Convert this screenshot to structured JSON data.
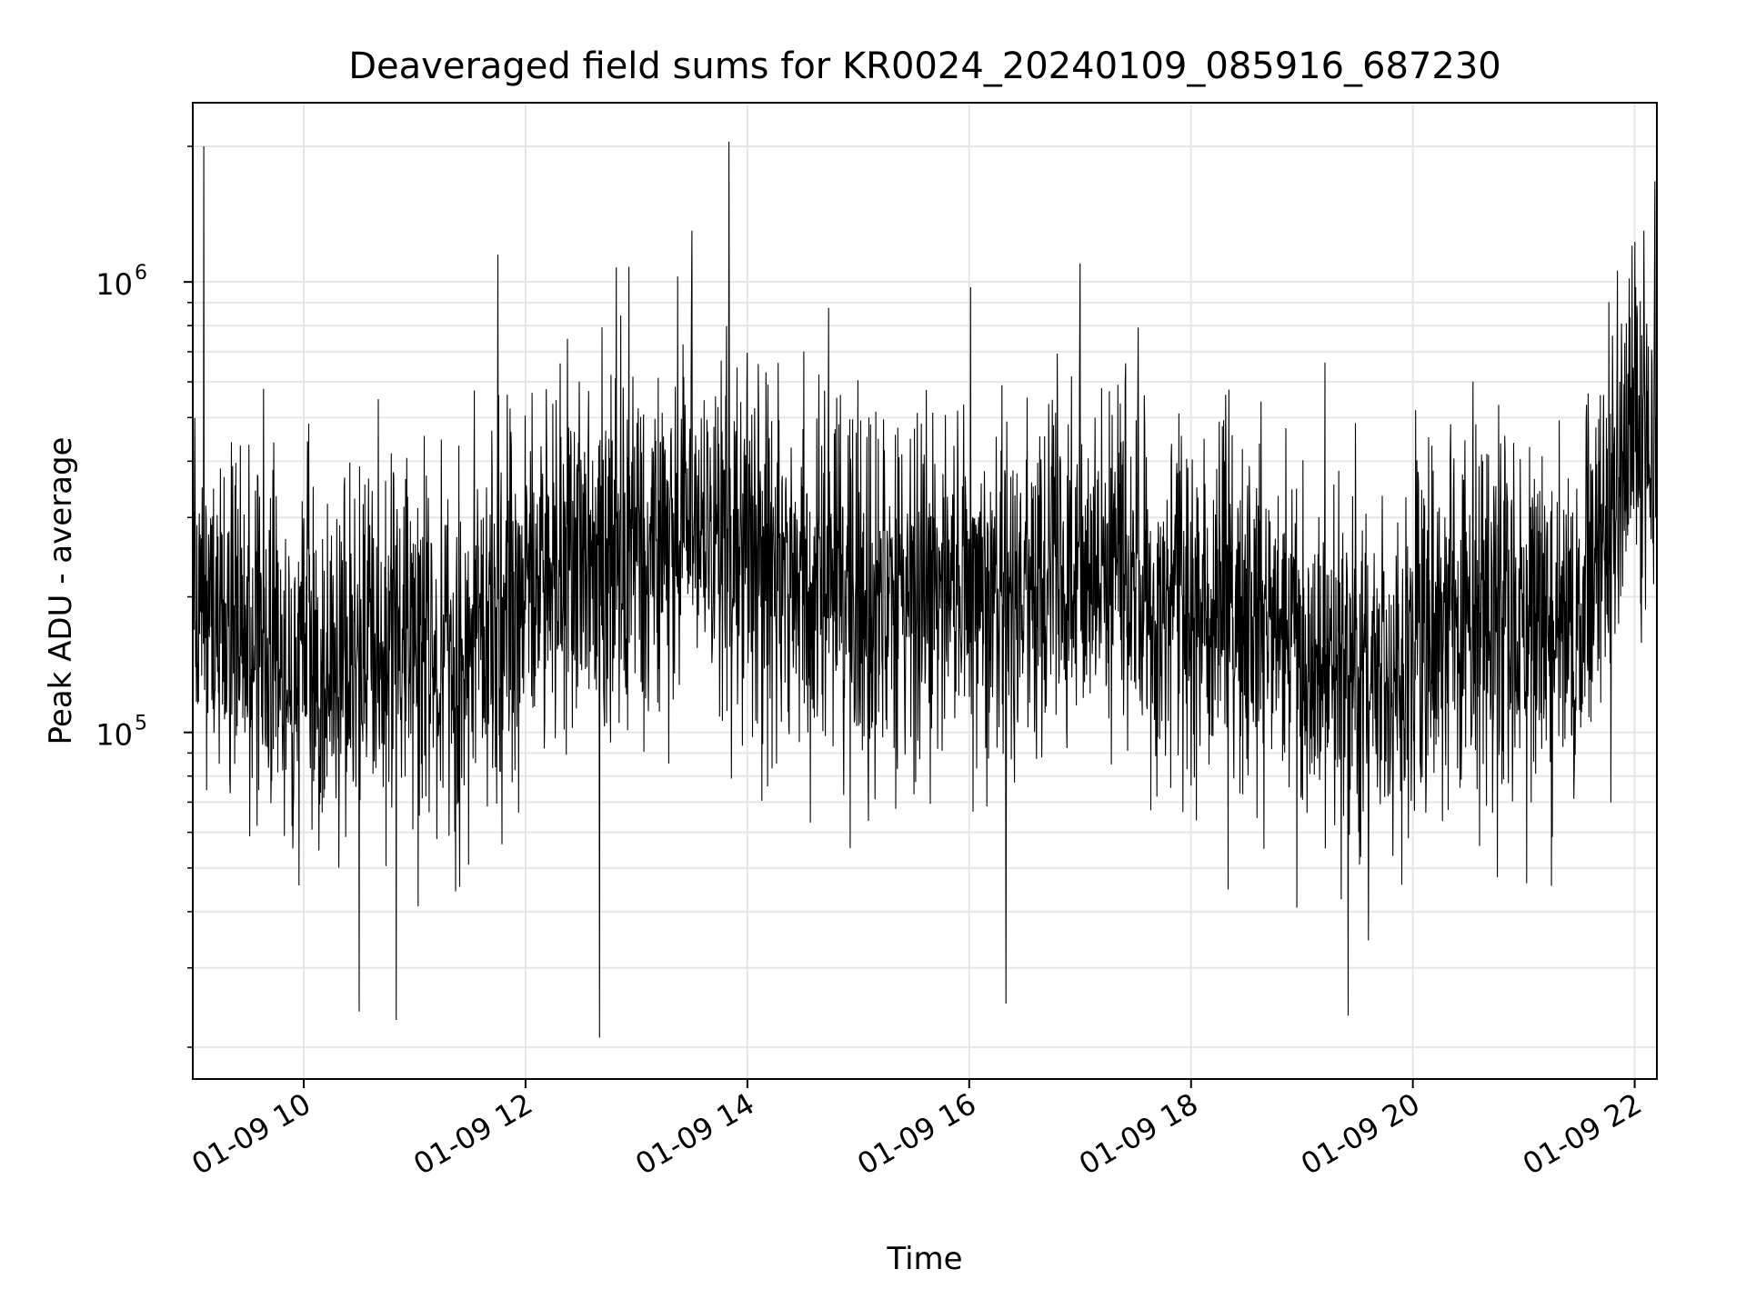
{
  "chart_data": {
    "type": "line",
    "title": "Deaveraged field sums for KR0024_20240109_085916_687230",
    "xlabel": "Time",
    "ylabel": "Peak ADU - average",
    "x_axis": {
      "kind": "time",
      "range": [
        "2024-01-09 09:00",
        "2024-01-09 22:12"
      ],
      "ticks": [
        "2024-01-09 10:00",
        "2024-01-09 12:00",
        "2024-01-09 14:00",
        "2024-01-09 16:00",
        "2024-01-09 18:00",
        "2024-01-09 20:00",
        "2024-01-09 22:00"
      ],
      "tick_labels": [
        "01-09 10",
        "01-09 12",
        "01-09 14",
        "01-09 16",
        "01-09 18",
        "01-09 20",
        "01-09 22"
      ]
    },
    "y_axis": {
      "scale": "log",
      "range": [
        17000,
        2500000
      ],
      "major_ticks": [
        100000,
        1000000
      ],
      "major_tick_bases": [
        "10",
        "10"
      ],
      "major_tick_exponents": [
        "5",
        "6"
      ]
    },
    "grid": true,
    "line_color": "#000000",
    "series": [
      {
        "x": [
          "2024-01-09 09:00",
          "2024-01-09 09:30",
          "2024-01-09 10:00",
          "2024-01-09 10:30",
          "2024-01-09 11:00",
          "2024-01-09 11:30",
          "2024-01-09 12:00",
          "2024-01-09 12:30",
          "2024-01-09 13:00",
          "2024-01-09 13:30",
          "2024-01-09 14:00",
          "2024-01-09 14:30",
          "2024-01-09 15:00",
          "2024-01-09 15:30",
          "2024-01-09 16:00",
          "2024-01-09 16:30",
          "2024-01-09 17:00",
          "2024-01-09 17:30",
          "2024-01-09 18:00",
          "2024-01-09 18:30",
          "2024-01-09 19:00",
          "2024-01-09 19:30",
          "2024-01-09 20:00",
          "2024-01-09 20:30",
          "2024-01-09 21:00",
          "2024-01-09 21:30",
          "2024-01-09 22:00",
          "2024-01-09 22:12"
        ],
        "y": [
          250000,
          160000,
          140000,
          150000,
          160000,
          140000,
          220000,
          230000,
          260000,
          270000,
          260000,
          220000,
          180000,
          200000,
          210000,
          200000,
          230000,
          210000,
          190000,
          180000,
          160000,
          140000,
          150000,
          170000,
          180000,
          180000,
          450000,
          500000
        ],
        "spikes": [
          {
            "x": "2024-01-09 09:06",
            "y": 2000000
          },
          {
            "x": "2024-01-09 11:45",
            "y": 1150000
          },
          {
            "x": "2024-01-09 13:50",
            "y": 2050000
          },
          {
            "x": "2024-01-09 13:30",
            "y": 1300000
          },
          {
            "x": "2024-01-09 17:00",
            "y": 1100000
          },
          {
            "x": "2024-01-09 22:05",
            "y": 1300000
          },
          {
            "x": "2024-01-09 10:50",
            "y": 23000
          },
          {
            "x": "2024-01-09 12:40",
            "y": 21000
          },
          {
            "x": "2024-01-09 16:20",
            "y": 25000
          },
          {
            "x": "2024-01-09 19:25",
            "y": 23500
          },
          {
            "x": "2024-01-09 10:30",
            "y": 24000
          }
        ]
      }
    ]
  }
}
